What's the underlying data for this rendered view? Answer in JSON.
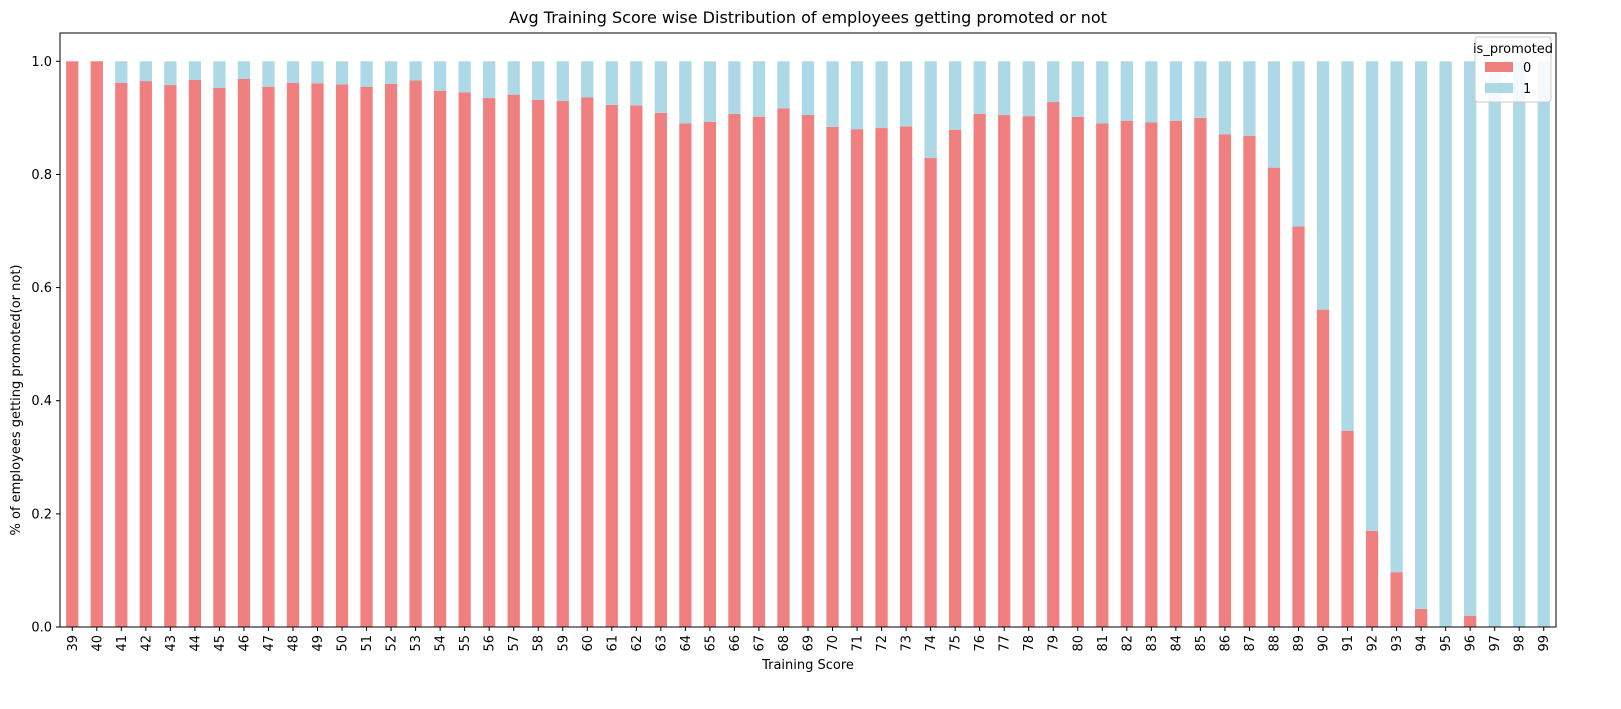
{
  "chart_data": {
    "type": "bar",
    "stacked": true,
    "title": "Avg Training Score wise Distribution of employees getting promoted or not",
    "xlabel": "Training Score",
    "ylabel": "% of employees getting promoted(or not)",
    "ylim": [
      0,
      1.05
    ],
    "yticks": [
      "0.0",
      "0.2",
      "0.4",
      "0.6",
      "0.8",
      "1.0"
    ],
    "grid": false,
    "legend": {
      "title": "is_promoted",
      "placement": "top-right"
    },
    "categories": [
      "39",
      "40",
      "41",
      "42",
      "43",
      "44",
      "45",
      "46",
      "47",
      "48",
      "49",
      "50",
      "51",
      "52",
      "53",
      "54",
      "55",
      "56",
      "57",
      "58",
      "59",
      "60",
      "61",
      "62",
      "63",
      "64",
      "65",
      "66",
      "67",
      "68",
      "69",
      "70",
      "71",
      "72",
      "73",
      "74",
      "75",
      "76",
      "77",
      "78",
      "79",
      "80",
      "81",
      "82",
      "83",
      "84",
      "85",
      "86",
      "87",
      "88",
      "89",
      "90",
      "91",
      "92",
      "93",
      "94",
      "95",
      "96",
      "97",
      "98",
      "99"
    ],
    "series": [
      {
        "name": "0",
        "color": "#f08080",
        "values": [
          1.0,
          1.0,
          0.962,
          0.965,
          0.958,
          0.967,
          0.953,
          0.969,
          0.955,
          0.962,
          0.961,
          0.959,
          0.955,
          0.96,
          0.966,
          0.948,
          0.945,
          0.935,
          0.941,
          0.932,
          0.93,
          0.936,
          0.923,
          0.922,
          0.909,
          0.89,
          0.893,
          0.907,
          0.902,
          0.917,
          0.905,
          0.884,
          0.88,
          0.882,
          0.885,
          0.829,
          0.879,
          0.907,
          0.905,
          0.903,
          0.928,
          0.902,
          0.89,
          0.895,
          0.892,
          0.895,
          0.9,
          0.871,
          0.868,
          0.812,
          0.708,
          0.561,
          0.347,
          0.17,
          0.097,
          0.032,
          0.0,
          0.02,
          0.0,
          0.0,
          0.0
        ]
      },
      {
        "name": "1",
        "color": "#add8e6",
        "values": [
          0.0,
          0.0,
          0.038,
          0.035,
          0.042,
          0.033,
          0.047,
          0.031,
          0.045,
          0.038,
          0.039,
          0.041,
          0.045,
          0.04,
          0.034,
          0.052,
          0.055,
          0.065,
          0.059,
          0.068,
          0.07,
          0.064,
          0.077,
          0.078,
          0.091,
          0.11,
          0.107,
          0.093,
          0.098,
          0.083,
          0.095,
          0.116,
          0.12,
          0.118,
          0.115,
          0.171,
          0.121,
          0.093,
          0.095,
          0.097,
          0.072,
          0.098,
          0.11,
          0.105,
          0.108,
          0.105,
          0.1,
          0.129,
          0.132,
          0.188,
          0.292,
          0.439,
          0.653,
          0.83,
          0.903,
          0.968,
          1.0,
          0.98,
          1.0,
          1.0,
          1.0
        ]
      }
    ]
  }
}
